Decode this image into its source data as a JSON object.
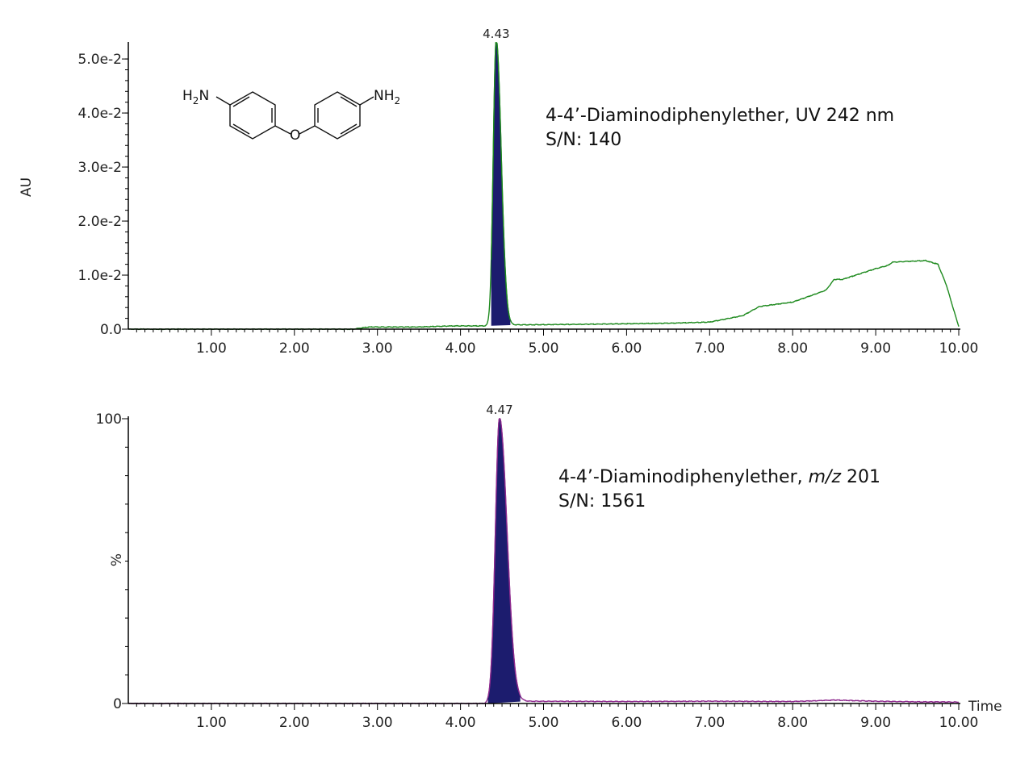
{
  "chart_data": [
    {
      "type": "line",
      "ylabel": "AU",
      "xlim": [
        0,
        10
      ],
      "ylim": [
        0,
        0.053
      ],
      "x_ticks": [
        "1.00",
        "2.00",
        "3.00",
        "4.00",
        "5.00",
        "6.00",
        "7.00",
        "8.00",
        "9.00",
        "10.00"
      ],
      "y_ticks": [
        "0.0",
        "1.0e-2",
        "2.0e-2",
        "3.0e-2",
        "4.0e-2",
        "5.0e-2"
      ],
      "y_tick_values": [
        0,
        0.01,
        0.02,
        0.03,
        0.04,
        0.05
      ],
      "peak_label": "4.43",
      "peak": {
        "rt": 4.43,
        "height": 0.053,
        "sigma": 0.035,
        "tail": 0.06,
        "fill_from": 4.37,
        "fill_to": 4.6
      },
      "annotation_lines": [
        "4-4’-Diaminodiphenylether, UV 242 nm",
        "S/N: 140"
      ],
      "baseline": {
        "x": [
          0,
          2.7,
          2.9,
          3.5,
          3.9,
          4.3,
          4.7,
          5.5,
          6.5,
          7.0,
          7.4,
          7.6,
          8.0,
          8.4,
          8.5,
          8.6,
          9.0,
          9.15,
          9.2,
          9.6,
          9.75,
          9.85,
          9.95,
          10.0
        ],
        "y": [
          0,
          0,
          0.0004,
          0.0004,
          0.0006,
          0.0006,
          0.0008,
          0.0009,
          0.0011,
          0.0013,
          0.0025,
          0.0042,
          0.005,
          0.0072,
          0.0092,
          0.0092,
          0.0112,
          0.0118,
          0.0124,
          0.0127,
          0.012,
          0.0082,
          0.003,
          0.0005
        ]
      },
      "line_color": "#1e8a1e",
      "fill_color": "#1c1c6e",
      "structure": {
        "left_group": "H2N",
        "right_group": "NH2",
        "bridge": "O"
      }
    },
    {
      "type": "line",
      "ylabel": "%",
      "xlabel": "Time",
      "xlim": [
        0,
        10
      ],
      "ylim": [
        0,
        100
      ],
      "x_ticks": [
        "1.00",
        "2.00",
        "3.00",
        "4.00",
        "5.00",
        "6.00",
        "7.00",
        "8.00",
        "9.00",
        "10.00"
      ],
      "y_ticks": [
        "0",
        "100"
      ],
      "y_tick_values": [
        0,
        100
      ],
      "peak_label": "4.47",
      "peak": {
        "rt": 4.47,
        "height": 100,
        "sigma": 0.05,
        "tail": 0.09,
        "fill_from": 4.33,
        "fill_to": 4.72
      },
      "annotation_lines": [
        "4-4’-Diaminodiphenylether, ",
        "m/z",
        " 201",
        "S/N: 1561"
      ],
      "baseline": {
        "x": [
          0,
          4.3,
          4.8,
          6.0,
          7.0,
          8.0,
          8.5,
          9.0,
          9.5,
          10.0
        ],
        "y": [
          0,
          0,
          0.8,
          0.7,
          0.8,
          0.7,
          1.2,
          0.8,
          0.6,
          0.5
        ]
      },
      "line_color": "#8e2a8e",
      "fill_color": "#1c1c6e"
    }
  ]
}
